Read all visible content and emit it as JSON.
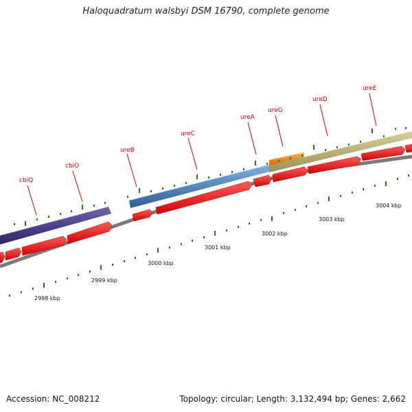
{
  "title": "Haloquadratum walsbyi DSM 16790, complete genome",
  "footer": {
    "accession": "Accession: NC_008212",
    "summary": "Topology: circular; Length: 3,132,494 bp; Genes: 2,662"
  },
  "colors": {
    "cds": "#ff1010",
    "backbone": "#8a8a8a",
    "tick": "#1a7a1a",
    "label": "#cc0000",
    "cbi_bar": "#4a3f8f",
    "ureABC_bar": "#4f86c0",
    "ureG_bar": "#f08c1c",
    "ureDE_bar": "#bfb77a"
  },
  "scale_labels": [
    "2998 kbp",
    "2999 kbp",
    "3000 kbp",
    "3001 kbp",
    "3002 kbp",
    "3003 kbp",
    "3004 kbp"
  ],
  "gene_labels": [
    "cbiQ",
    "cbiO",
    "ureB",
    "ureC",
    "ureA",
    "ureG",
    "ureD",
    "ureE"
  ]
}
